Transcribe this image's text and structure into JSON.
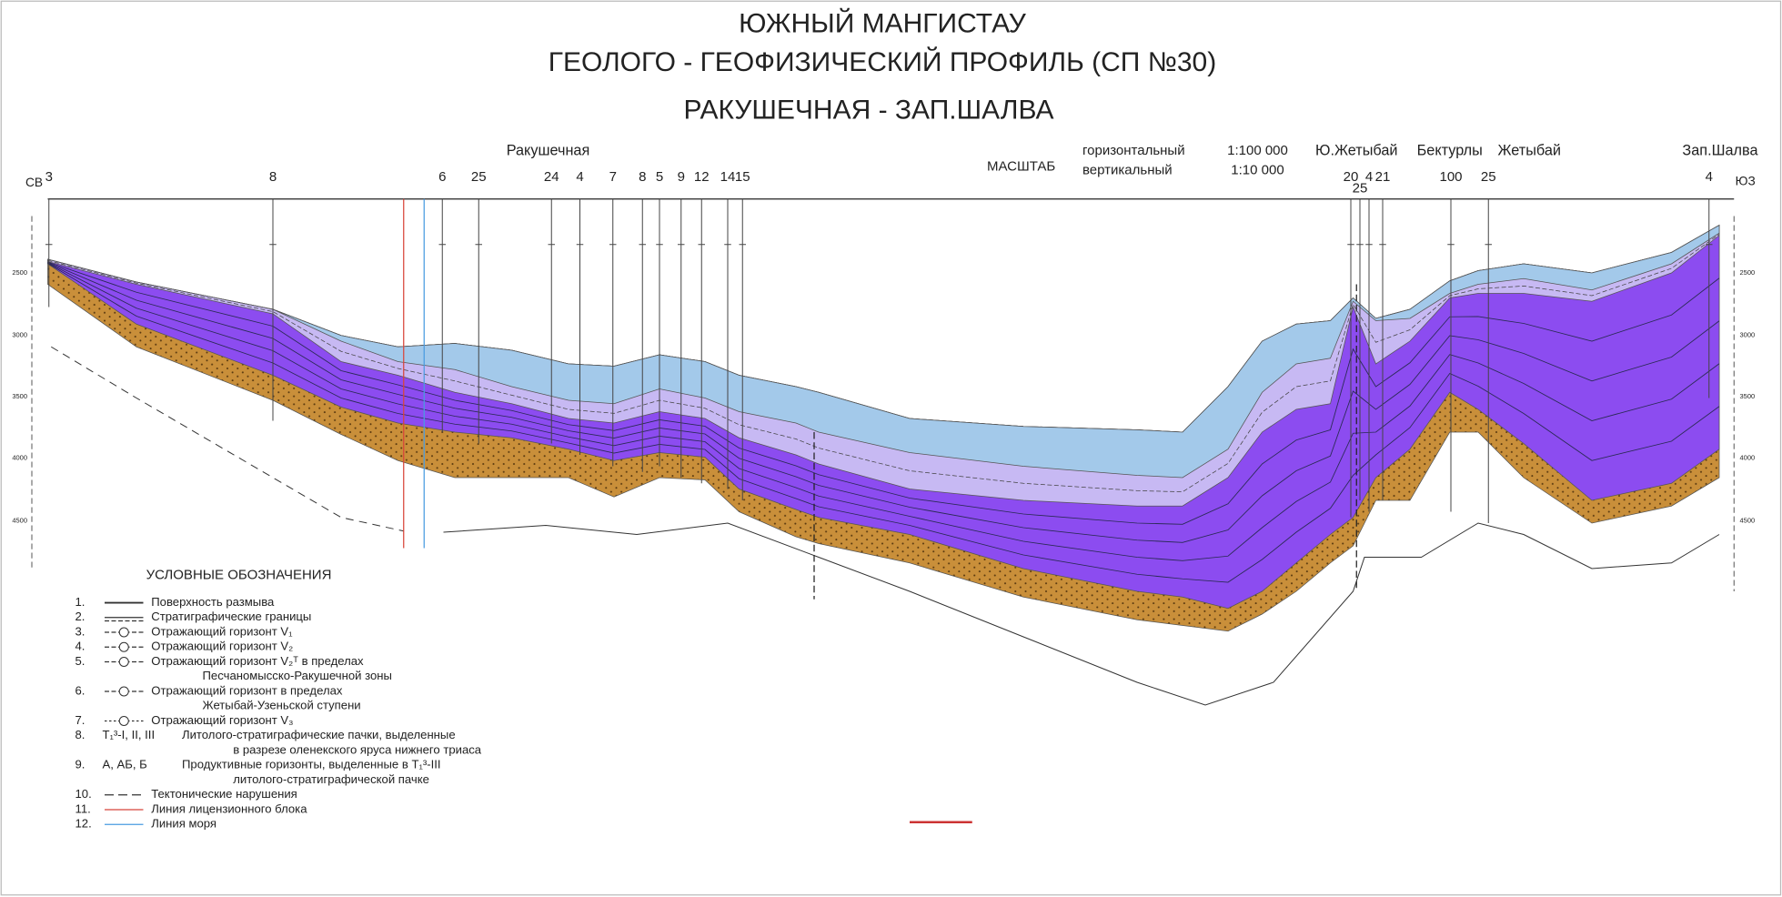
{
  "header": {
    "title_lines": [
      "ЮЖНЫЙ МАНГИСТАУ",
      "ГЕОЛОГО - ГЕОФИЗИЧЕСКИЙ ПРОФИЛЬ (СП №30)",
      "РАКУШЕЧНАЯ - ЗАП.ШАЛВА"
    ]
  },
  "scale": {
    "label": "МАСШТАБ",
    "horizontal": "горизонтальный",
    "vertical": "вертикальный",
    "horizontal_ratio": "1:100 000",
    "vertical_ratio": "1:10 000"
  },
  "places": [
    "Ракушечная",
    "Ю.Жетыбай",
    "Бектурлы",
    "Жетыбай",
    "Зап.Шалва"
  ],
  "directions": {
    "left": "СВ",
    "right": "ЮЗ"
  },
  "wells": [
    "3",
    "8",
    "6",
    "25",
    "24",
    "4",
    "7",
    "8",
    "5",
    "9",
    "12",
    "14",
    "15",
    "20",
    "25",
    "4",
    "21",
    "100",
    "25",
    "4"
  ],
  "depth_labels": {
    "left": [
      2500,
      3000,
      3500,
      4000,
      4500
    ],
    "right": [
      2500,
      3000,
      3500,
      4000,
      4500
    ]
  },
  "legend": {
    "title": "УСЛОВНЫЕ ОБОЗНАЧЕНИЯ",
    "items": [
      {
        "number": "1.",
        "lines": [
          "Поверхность размыва"
        ]
      },
      {
        "number": "2.",
        "lines": [
          "Стратиграфические границы"
        ]
      },
      {
        "number": "3.",
        "lines": [
          "Отражающий горизонт V₁"
        ]
      },
      {
        "number": "4.",
        "lines": [
          "Отражающий горизонт V₂"
        ]
      },
      {
        "number": "5.",
        "lines": [
          "Отражающий горизонт V₂ᵀ в пределах",
          "Песчаномысско-Ракушечной зоны"
        ]
      },
      {
        "number": "6.",
        "lines": [
          "Отражающий горизонт в пределах",
          "Жетыбай-Узеньской ступени"
        ]
      },
      {
        "number": "7.",
        "lines": [
          "Отражающий горизонт V₃"
        ]
      },
      {
        "number": "8.",
        "key": "T₁³-I, II, III",
        "lines": [
          "Литолого-стратиграфические пачки, выделенные",
          "в разрезе оленекского яруса нижнего триаса"
        ]
      },
      {
        "number": "9.",
        "key": "А, АБ, Б",
        "lines": [
          "Продуктивные горизонты, выделенные в T₁³-III",
          "литолого-стратиграфической пачке"
        ]
      },
      {
        "number": "10.",
        "lines": [
          "Тектонические нарушения"
        ]
      },
      {
        "number": "11.",
        "lines": [
          "Линия лицензионного блока"
        ]
      },
      {
        "number": "12.",
        "lines": [
          "Линия моря"
        ]
      }
    ]
  }
}
